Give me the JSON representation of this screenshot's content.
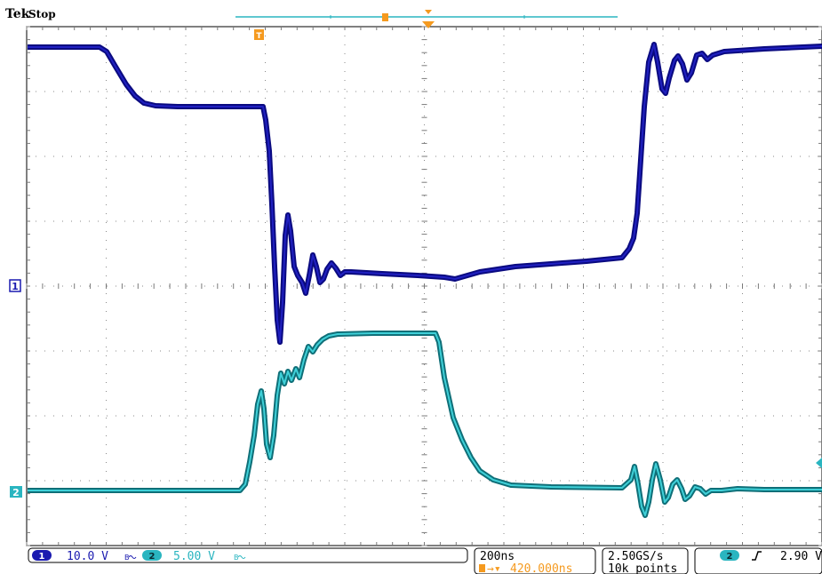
{
  "header": {
    "brand": "Tek",
    "status": "Stop"
  },
  "colors": {
    "ch1": "#1a1ab0",
    "ch1_dark": "#0a0a80",
    "ch2": "#2ab5c0",
    "ch2_dark": "#0f6f78",
    "trigger": "#f59a1f",
    "grid": "#8a8a8a"
  },
  "markers": {
    "ch1": "1",
    "ch2": "2",
    "trigger_time": "T"
  },
  "status_bar": {
    "ch1_scale": "10.0 V",
    "ch1_bw_icon": "bandwidth-limit-icon",
    "ch2_scale": "5.00 V",
    "ch2_bw_icon": "bandwidth-limit-icon",
    "timebase": "200ns",
    "trigger_offset": "420.000ns",
    "sample_rate": "2.50GS/s",
    "record_length": "10k points",
    "trigger_source": "2",
    "trigger_slope_icon": "rising-edge-icon",
    "trigger_level": "2.90 V"
  }
}
